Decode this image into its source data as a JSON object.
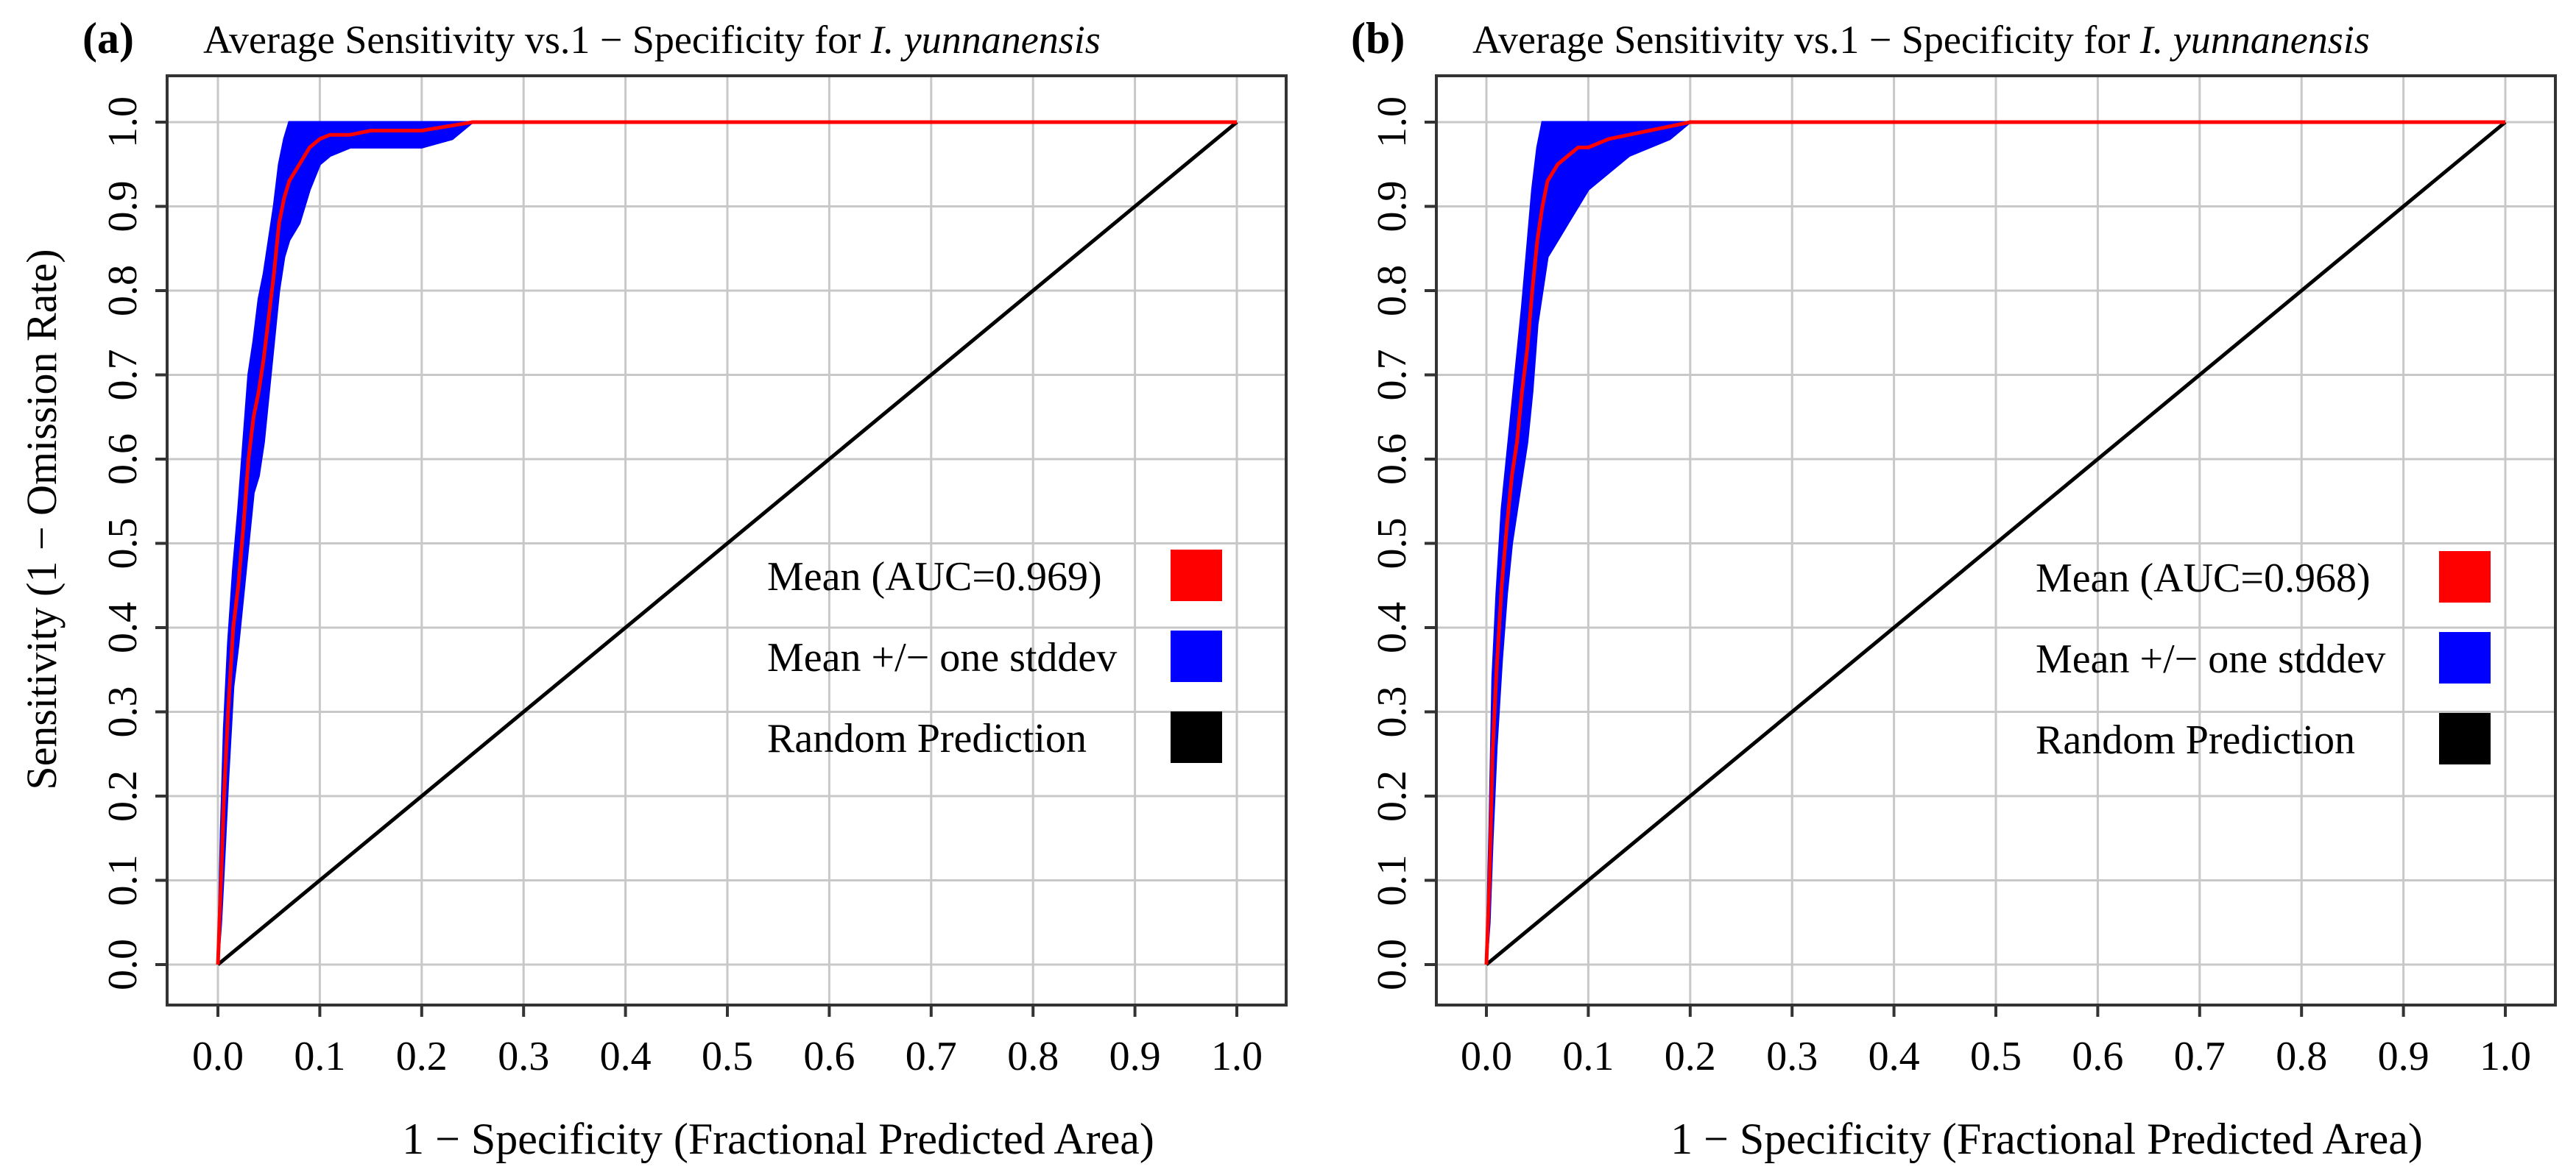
{
  "chart_data": [
    {
      "panel": "(a)",
      "type": "line",
      "title_prefix": "Average Sensitivity vs.1 − Specificity for ",
      "title_species": "I. yunnanensis",
      "xlabel": "1 − Specificity (Fractional Predicted Area)",
      "ylabel": "Sensitivity (1 − Omission Rate)",
      "xlim": [
        0,
        1
      ],
      "ylim": [
        0,
        1
      ],
      "xticks": [
        "0.0",
        "0.1",
        "0.2",
        "0.3",
        "0.4",
        "0.5",
        "0.6",
        "0.7",
        "0.8",
        "0.9",
        "1.0"
      ],
      "yticks": [
        "0.0",
        "0.1",
        "0.2",
        "0.3",
        "0.4",
        "0.5",
        "0.6",
        "0.7",
        "0.8",
        "0.9",
        "1.0"
      ],
      "grid": true,
      "legend_position": "right-middle",
      "series": [
        {
          "name": "Mean (AUC=0.969)",
          "color": "#ff0000",
          "x": [
            0,
            0.003,
            0.006,
            0.01,
            0.015,
            0.02,
            0.025,
            0.03,
            0.035,
            0.04,
            0.045,
            0.05,
            0.055,
            0.06,
            0.065,
            0.07,
            0.08,
            0.09,
            0.1,
            0.11,
            0.13,
            0.15,
            0.2,
            0.25,
            0.3,
            0.5,
            1.0
          ],
          "y": [
            0,
            0.1,
            0.2,
            0.3,
            0.4,
            0.45,
            0.52,
            0.6,
            0.65,
            0.68,
            0.72,
            0.77,
            0.82,
            0.88,
            0.91,
            0.93,
            0.95,
            0.97,
            0.98,
            0.985,
            0.985,
            0.99,
            0.99,
            1.0,
            1.0,
            1.0,
            1.0
          ]
        },
        {
          "name": "Mean +/− one stddev",
          "color": "#0000ff",
          "x": [
            0,
            0.003,
            0.006,
            0.01,
            0.015,
            0.02,
            0.025,
            0.03,
            0.035,
            0.04,
            0.045,
            0.05,
            0.055,
            0.06,
            0.065,
            0.07,
            0.08,
            0.09,
            0.1,
            0.11,
            0.13,
            0.15,
            0.2,
            0.23,
            0.25,
            0.3,
            1.0
          ],
          "upper": [
            0,
            0.16,
            0.28,
            0.38,
            0.47,
            0.54,
            0.62,
            0.7,
            0.74,
            0.79,
            0.82,
            0.86,
            0.9,
            0.95,
            0.98,
            1.0,
            1.0,
            1.0,
            1.0,
            1.0,
            1.0,
            1.0,
            1.0,
            1.0,
            1.0,
            1.0,
            1.0
          ],
          "lower": [
            0,
            0.05,
            0.12,
            0.22,
            0.33,
            0.38,
            0.44,
            0.5,
            0.56,
            0.58,
            0.62,
            0.68,
            0.74,
            0.8,
            0.84,
            0.86,
            0.88,
            0.92,
            0.95,
            0.96,
            0.97,
            0.97,
            0.97,
            0.98,
            1.0,
            1.0,
            1.0
          ]
        },
        {
          "name": "Random Prediction",
          "color": "#000000",
          "x": [
            0,
            1
          ],
          "y": [
            0,
            1
          ]
        }
      ]
    },
    {
      "panel": "(b)",
      "type": "line",
      "title_prefix": "Average Sensitivity vs.1 − Specificity for ",
      "title_species": "I. yunnanensis",
      "xlabel": "1 − Specificity (Fractional Predicted Area)",
      "ylabel": "",
      "xlim": [
        0,
        1
      ],
      "ylim": [
        0,
        1
      ],
      "xticks": [
        "0.0",
        "0.1",
        "0.2",
        "0.3",
        "0.4",
        "0.5",
        "0.6",
        "0.7",
        "0.8",
        "0.9",
        "1.0"
      ],
      "yticks": [
        "0.0",
        "0.1",
        "0.2",
        "0.3",
        "0.4",
        "0.5",
        "0.6",
        "0.7",
        "0.8",
        "0.9",
        "1.0"
      ],
      "grid": true,
      "legend_position": "right-middle",
      "series": [
        {
          "name": "Mean (AUC=0.968)",
          "color": "#ff0000",
          "x": [
            0,
            0.003,
            0.006,
            0.01,
            0.015,
            0.02,
            0.025,
            0.03,
            0.035,
            0.04,
            0.045,
            0.05,
            0.055,
            0.06,
            0.07,
            0.08,
            0.09,
            0.1,
            0.12,
            0.14,
            0.16,
            0.2,
            0.25,
            0.5,
            1.0
          ],
          "y": [
            0,
            0.1,
            0.25,
            0.35,
            0.45,
            0.52,
            0.58,
            0.62,
            0.68,
            0.73,
            0.8,
            0.86,
            0.9,
            0.93,
            0.95,
            0.96,
            0.97,
            0.97,
            0.98,
            0.985,
            0.99,
            1.0,
            1.0,
            1.0,
            1.0
          ]
        },
        {
          "name": "Mean +/− one stddev",
          "color": "#0000ff",
          "x": [
            0,
            0.003,
            0.006,
            0.01,
            0.015,
            0.02,
            0.025,
            0.03,
            0.035,
            0.04,
            0.045,
            0.05,
            0.055,
            0.06,
            0.07,
            0.08,
            0.09,
            0.1,
            0.12,
            0.14,
            0.16,
            0.18,
            0.2,
            0.25,
            1.0
          ],
          "upper": [
            0,
            0.16,
            0.34,
            0.44,
            0.54,
            0.6,
            0.66,
            0.72,
            0.78,
            0.85,
            0.92,
            0.97,
            1.0,
            1.0,
            1.0,
            1.0,
            1.0,
            1.0,
            1.0,
            1.0,
            1.0,
            1.0,
            1.0,
            1.0,
            1.0
          ],
          "lower": [
            0,
            0.05,
            0.15,
            0.26,
            0.36,
            0.44,
            0.5,
            0.54,
            0.58,
            0.62,
            0.68,
            0.76,
            0.8,
            0.84,
            0.86,
            0.88,
            0.9,
            0.92,
            0.94,
            0.96,
            0.97,
            0.98,
            1.0,
            1.0,
            1.0
          ]
        },
        {
          "name": "Random Prediction",
          "color": "#000000",
          "x": [
            0,
            1
          ],
          "y": [
            0,
            1
          ]
        }
      ]
    }
  ]
}
